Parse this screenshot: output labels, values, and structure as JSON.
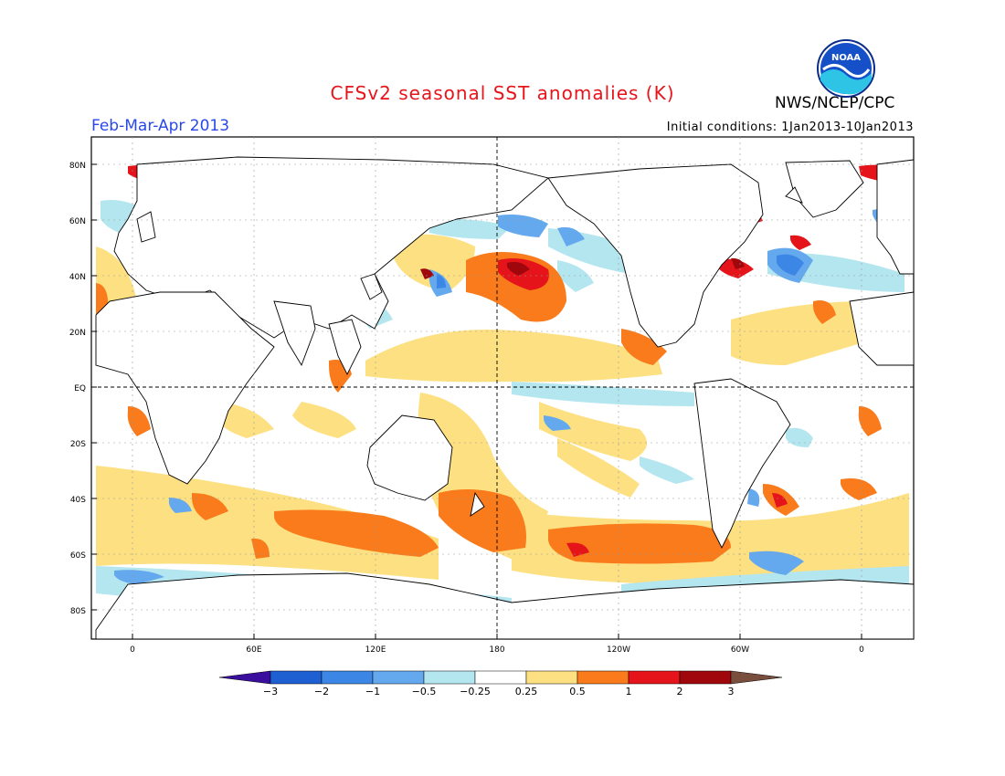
{
  "header": {
    "title": "CFSv2 seasonal SST anomalies (K)",
    "agency": "NWS/NCEP/CPC",
    "logo_text": "NOAA",
    "period": "Feb-Mar-Apr 2013",
    "initial_conditions": "Initial conditions: 1Jan2013-10Jan2013"
  },
  "axes": {
    "lat_labels": [
      "80N",
      "60N",
      "40N",
      "20N",
      "EQ",
      "20S",
      "40S",
      "60S",
      "80S"
    ],
    "lon_labels": [
      "0",
      "60E",
      "120E",
      "180",
      "120W",
      "60W",
      "0"
    ]
  },
  "colorbar": {
    "labels": [
      "-3",
      "-2",
      "-1",
      "-0.5",
      "-0.25",
      "0.25",
      "0.5",
      "1",
      "2",
      "3"
    ],
    "colors": [
      "#3b0f9e",
      "#1e5fd2",
      "#3c87e6",
      "#64a8ee",
      "#b4e6f0",
      "#ffffff",
      "#fce082",
      "#f97b1c",
      "#e4141a",
      "#a0070c",
      "#7a4e3c"
    ]
  }
}
